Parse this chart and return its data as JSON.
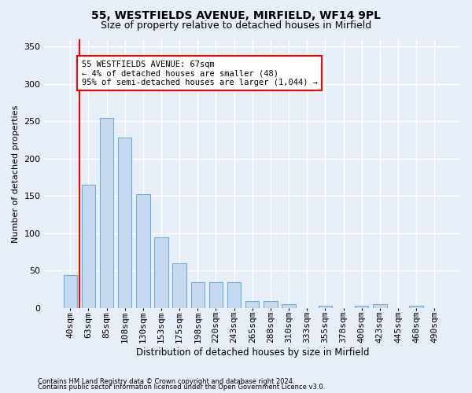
{
  "title1": "55, WESTFIELDS AVENUE, MIRFIELD, WF14 9PL",
  "title2": "Size of property relative to detached houses in Mirfield",
  "xlabel": "Distribution of detached houses by size in Mirfield",
  "ylabel": "Number of detached properties",
  "footnote1": "Contains HM Land Registry data © Crown copyright and database right 2024.",
  "footnote2": "Contains public sector information licensed under the Open Government Licence v3.0.",
  "categories": [
    "40sqm",
    "63sqm",
    "85sqm",
    "108sqm",
    "130sqm",
    "153sqm",
    "175sqm",
    "198sqm",
    "220sqm",
    "243sqm",
    "265sqm",
    "288sqm",
    "310sqm",
    "333sqm",
    "355sqm",
    "378sqm",
    "400sqm",
    "423sqm",
    "445sqm",
    "468sqm",
    "490sqm"
  ],
  "values": [
    44,
    165,
    255,
    228,
    152,
    95,
    60,
    35,
    35,
    34,
    9,
    9,
    5,
    0,
    3,
    0,
    3,
    5,
    0,
    3,
    0
  ],
  "bar_color": "#c5d9f0",
  "bar_edge_color": "#6baed6",
  "property_line_color": "red",
  "annotation_text": "55 WESTFIELDS AVENUE: 67sqm\n← 4% of detached houses are smaller (48)\n95% of semi-detached houses are larger (1,044) →",
  "annotation_box_color": "white",
  "annotation_box_edgecolor": "red",
  "ylim": [
    0,
    360
  ],
  "yticks": [
    0,
    50,
    100,
    150,
    200,
    250,
    300,
    350
  ],
  "background_color": "#e8eef7",
  "grid_color": "#ffffff",
  "title1_fontsize": 10,
  "title2_fontsize": 9,
  "xlabel_fontsize": 8.5,
  "ylabel_fontsize": 8,
  "tick_fontsize": 8,
  "annot_fontsize": 7.5,
  "footnote_fontsize": 6
}
